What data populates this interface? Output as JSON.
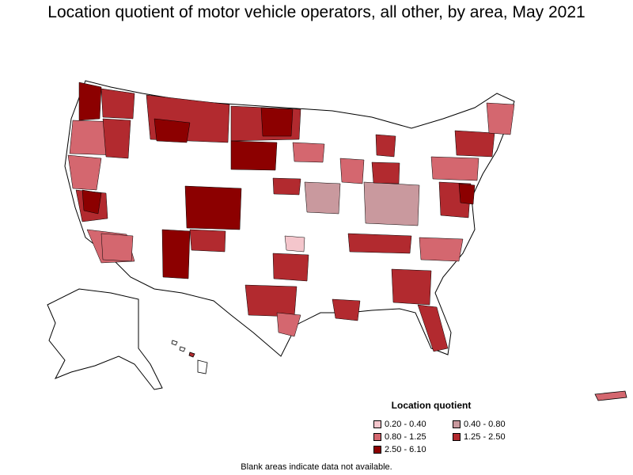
{
  "title": "Location quotient of motor vehicle operators, all other, by area, May 2021",
  "legend": {
    "title": "Location quotient",
    "items": [
      {
        "label": "0.20 - 0.40",
        "color": "#f4c6cc"
      },
      {
        "label": "0.40 - 0.80",
        "color": "#c9999e"
      },
      {
        "label": "0.80 - 1.25",
        "color": "#d4676f"
      },
      {
        "label": "1.25 - 2.50",
        "color": "#b22a2f"
      },
      {
        "label": "2.50 - 6.10",
        "color": "#8c0000"
      }
    ]
  },
  "footnote": "Blank areas indicate data not available."
}
